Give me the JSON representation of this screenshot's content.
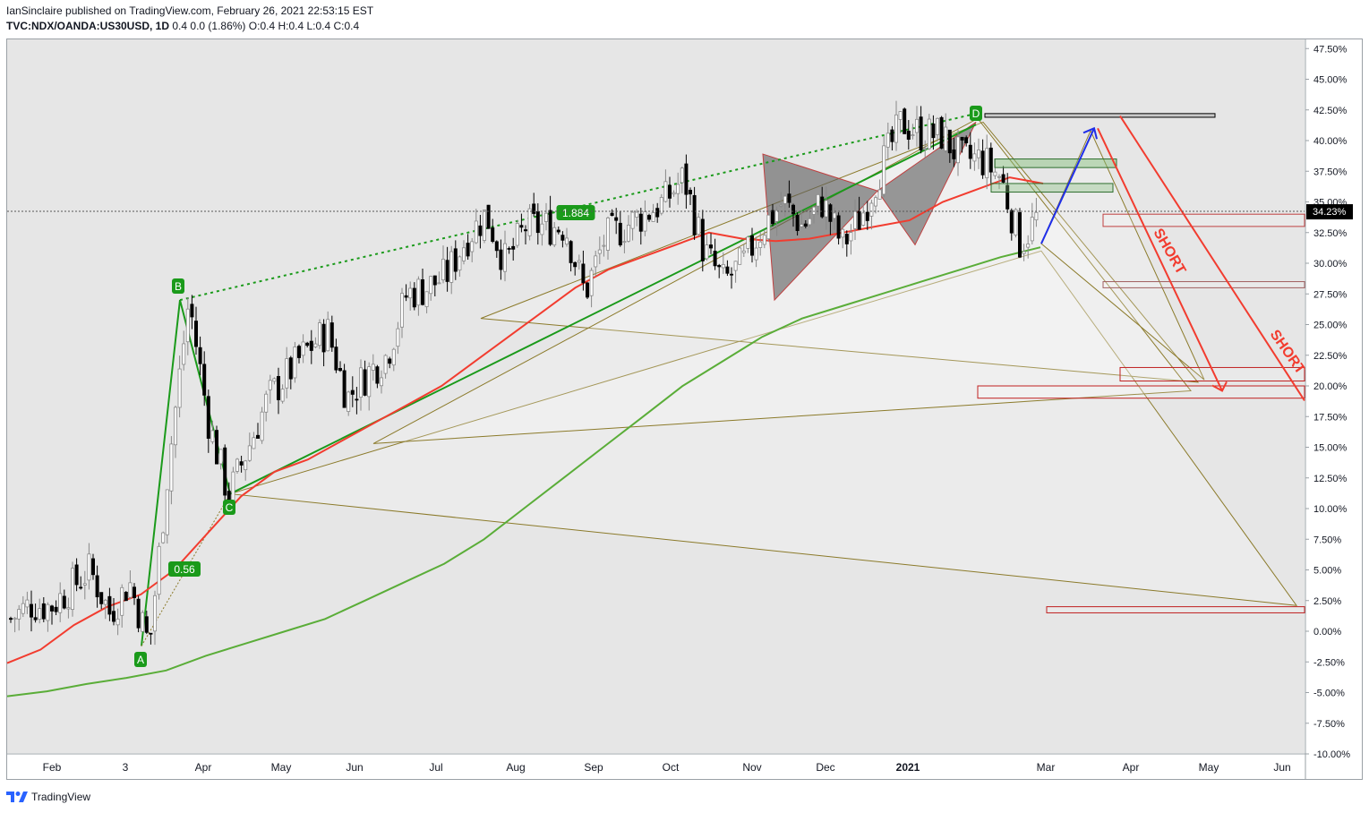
{
  "header": {
    "publisher_line": "IanSinclaire published on TradingView.com, February 26, 2021 22:53:15 EST",
    "symbol": "TVC:NDX/OANDA:US30USD, 1D",
    "change": "0.4 0.0 (1.86%)",
    "ohlc": "O:0.4 H:0.4 L:0.4 C:0.4"
  },
  "footer": {
    "brand": "TradingView"
  },
  "colors": {
    "background": "#e6e6e6",
    "sma_fast": "#f23c2f",
    "sma_slow": "#5aad38",
    "pattern_green": "#1a9a1a",
    "pattern_olive": "#8b7a2a",
    "short_arrow": "#f23c2f",
    "projection_arrow": "#1f2ee8",
    "price_label_bg": "#000000"
  },
  "chart_data": {
    "type": "candlestick",
    "y_unit": "%",
    "ylim": [
      -10,
      48.5
    ],
    "y_ticks": [
      "47.50%",
      "45.00%",
      "42.50%",
      "40.00%",
      "37.50%",
      "35.00%",
      "32.50%",
      "30.00%",
      "27.50%",
      "25.00%",
      "22.50%",
      "20.00%",
      "17.50%",
      "15.00%",
      "12.50%",
      "10.00%",
      "7.50%",
      "5.00%",
      "2.50%",
      "0.00%",
      "-2.50%",
      "-5.00%",
      "-7.50%",
      "-10.00%"
    ],
    "x_ticks": [
      "Feb",
      "3",
      "Apr",
      "May",
      "Jun",
      "Jul",
      "Aug",
      "Sep",
      "Oct",
      "Nov",
      "Dec",
      "2021",
      "Mar",
      "Apr",
      "May",
      "Jun"
    ],
    "current_value": "34.23%",
    "current_price": 34.23,
    "pattern_labels": [
      "A",
      "B",
      "C",
      "D"
    ],
    "pattern_points": {
      "A": -1.2,
      "B": 27.0,
      "C": 11.2,
      "D": 42.2
    },
    "ratio_labels": [
      "0.56",
      "1.884"
    ],
    "annotations": [
      "SHORT",
      "SHORT"
    ],
    "price_path": [
      [
        1.0,
        2.0
      ],
      [
        2.2,
        4.0
      ],
      [
        2.0,
        5.5
      ],
      [
        3.5,
        6.5
      ],
      [
        5.0,
        6.5
      ],
      [
        1.5,
        0.5
      ],
      [
        4.0,
        7.0
      ],
      [
        -1.2,
        9.0
      ],
      [
        14.0,
        18.0
      ],
      [
        27.0,
        20.0
      ],
      [
        17.0,
        11.2
      ],
      [
        11.0,
        14.0
      ],
      [
        15.0,
        18.0
      ],
      [
        19.0,
        18.0
      ],
      [
        21.0,
        20.0
      ],
      [
        23.0,
        24.0
      ],
      [
        24.5,
        21.0
      ],
      [
        19.0,
        20.0
      ],
      [
        21.0,
        16.0
      ],
      [
        22.5,
        26.0
      ],
      [
        27.5,
        34.5
      ],
      [
        28.0,
        26.0
      ],
      [
        29.0,
        32.0
      ],
      [
        32.0,
        33.0
      ],
      [
        34.0,
        27.0
      ],
      [
        30.0,
        33.0
      ],
      [
        33.0,
        38.5
      ],
      [
        33.0,
        32.0
      ],
      [
        33.0,
        29.0
      ],
      [
        27.5,
        31.0
      ],
      [
        32.0,
        33.0
      ],
      [
        33.0,
        32.0
      ],
      [
        34.0,
        31.0
      ],
      [
        35.0,
        34.0
      ],
      [
        37.0,
        38.5
      ],
      [
        31.0,
        27.0
      ],
      [
        28.5,
        30.0
      ],
      [
        30.0,
        32.0
      ],
      [
        33.0,
        34.0
      ],
      [
        35.0,
        36.0
      ],
      [
        33.0,
        34.0
      ],
      [
        35.0,
        36.0
      ],
      [
        31.5,
        37.0
      ],
      [
        34.0,
        38.0
      ],
      [
        38.0,
        40.0
      ],
      [
        41.5,
        42.0
      ],
      [
        40.5,
        41.0
      ],
      [
        40.5,
        40.0
      ],
      [
        38.5,
        39.0
      ],
      [
        38.5,
        38.0
      ],
      [
        37.0,
        34.0
      ],
      [
        31.5,
        33.0
      ],
      [
        34.23,
        34.23
      ]
    ],
    "series": [
      {
        "name": "",
        "color": "#f23c2f",
        "values": [
          -2.6,
          -1.5,
          0.5,
          2.0,
          3.0,
          5.0,
          8.0,
          11.0,
          13.0,
          14.0,
          15.5,
          17.0,
          18.5,
          20.0,
          22.0,
          24.0,
          26.0,
          28.0,
          29.5,
          30.5,
          31.5,
          32.5,
          32.0,
          31.8,
          32.0,
          32.5,
          33.0,
          33.5,
          35.0,
          36.0,
          37.0,
          36.5
        ]
      },
      {
        "name": "",
        "color": "#5aad38",
        "values": [
          -5.3,
          -4.9,
          -4.3,
          -3.8,
          -3.2,
          -2.0,
          -1.0,
          0.0,
          1.0,
          2.5,
          4.0,
          5.5,
          7.5,
          10.0,
          12.5,
          15.0,
          17.5,
          20.0,
          22.0,
          24.0,
          25.5,
          26.5,
          27.5,
          28.5,
          29.5,
          30.5,
          31.3
        ]
      }
    ],
    "zones": [
      {
        "from": 42.2,
        "to": 41.9
      },
      {
        "from": 38.5,
        "to": 37.8
      },
      {
        "from": 36.5,
        "to": 35.8
      },
      {
        "from": 34.0,
        "to": 33.0
      },
      {
        "from": 28.5,
        "to": 28.0
      },
      {
        "from": 21.5,
        "to": 20.4
      },
      {
        "from": 20.0,
        "to": 19.0
      },
      {
        "from": 2.0,
        "to": 1.5
      }
    ]
  }
}
